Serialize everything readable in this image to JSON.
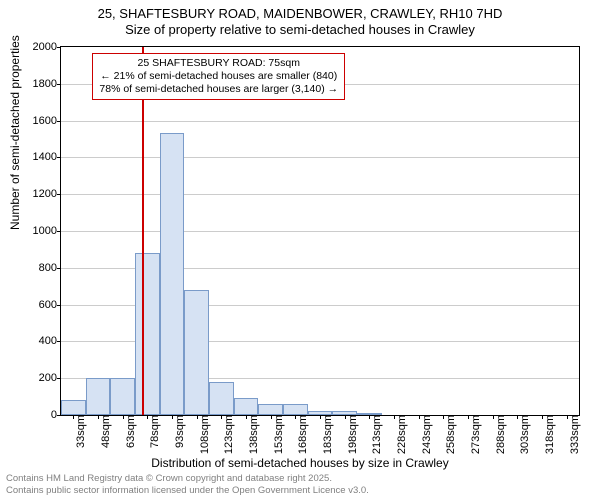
{
  "chart": {
    "type": "histogram",
    "title_line1": "25, SHAFTESBURY ROAD, MAIDENBOWER, CRAWLEY, RH10 7HD",
    "title_line2": "Size of property relative to semi-detached houses in Crawley",
    "title_fontsize": 13,
    "y_label": "Number of semi-detached properties",
    "x_label": "Distribution of semi-detached houses by size in Crawley",
    "label_fontsize": 12,
    "tick_fontsize": 11,
    "background_color": "#ffffff",
    "axis_color": "#000000",
    "grid_color": "#cccccc",
    "bar_fill": "#d6e2f3",
    "bar_border": "#7a9bc9",
    "marker_line_color": "#cc0000",
    "annotation_border": "#cc0000",
    "footer_color": "#808080",
    "x_min": 25.5,
    "x_max": 340.5,
    "x_tick_start": 33,
    "x_tick_step": 15,
    "x_tick_count": 21,
    "x_tick_unit": "sqm",
    "y_min": 0,
    "y_max": 2000,
    "y_tick_step": 200,
    "bin_width": 15,
    "bins": [
      {
        "start": 25.5,
        "value": 80
      },
      {
        "start": 40.5,
        "value": 200
      },
      {
        "start": 55.5,
        "value": 200
      },
      {
        "start": 70.5,
        "value": 880
      },
      {
        "start": 85.5,
        "value": 1530
      },
      {
        "start": 100.5,
        "value": 680
      },
      {
        "start": 115.5,
        "value": 180
      },
      {
        "start": 130.5,
        "value": 90
      },
      {
        "start": 145.5,
        "value": 60
      },
      {
        "start": 160.5,
        "value": 60
      },
      {
        "start": 175.5,
        "value": 20
      },
      {
        "start": 190.5,
        "value": 20
      },
      {
        "start": 205.5,
        "value": 10
      },
      {
        "start": 220.5,
        "value": 0
      },
      {
        "start": 235.5,
        "value": 0
      },
      {
        "start": 250.5,
        "value": 0
      },
      {
        "start": 265.5,
        "value": 0
      },
      {
        "start": 280.5,
        "value": 0
      },
      {
        "start": 295.5,
        "value": 0
      },
      {
        "start": 310.5,
        "value": 0
      },
      {
        "start": 325.5,
        "value": 0
      }
    ],
    "marker_value": 75,
    "annotation": {
      "line1": "25 SHAFTESBURY ROAD: 75sqm",
      "line2": "← 21% of semi-detached houses are smaller (840)",
      "line3": "78% of semi-detached houses are larger (3,140) →",
      "fontsize": 10.5
    },
    "footer_line1": "Contains HM Land Registry data © Crown copyright and database right 2025.",
    "footer_line2": "Contains public sector information licensed under the Open Government Licence v3.0."
  }
}
